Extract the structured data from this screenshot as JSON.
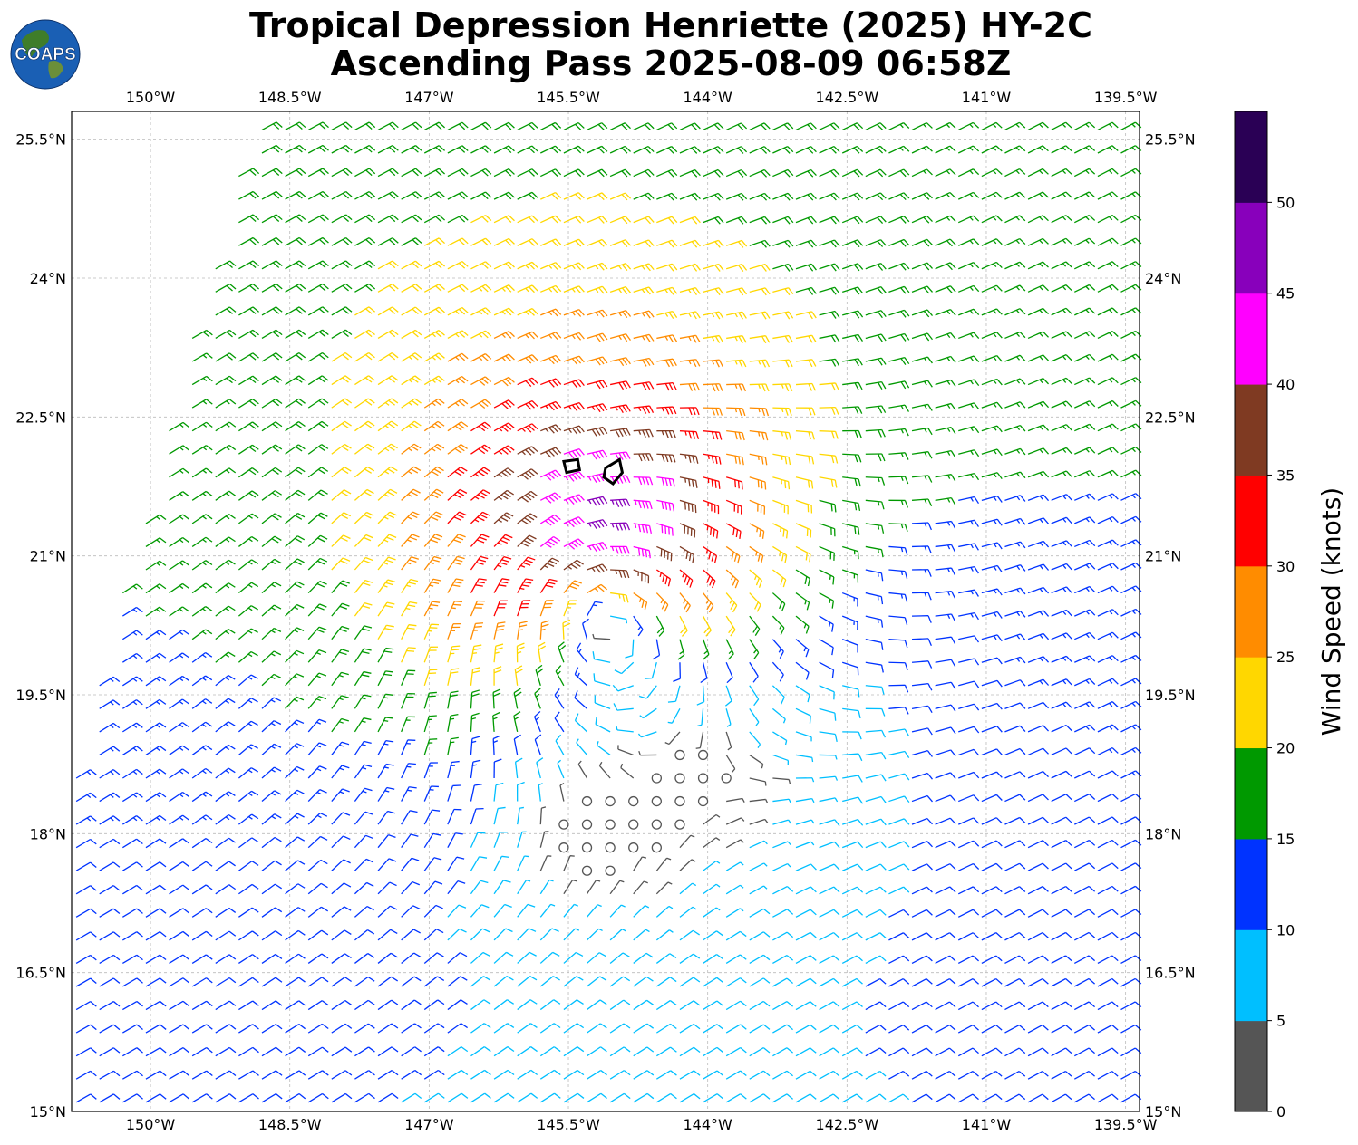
{
  "title": {
    "line1": "Tropical Depression Henriette (2025) HY-2C",
    "line2": "Ascending Pass 2025-08-09 06:58Z"
  },
  "logo": {
    "text": "COAPS",
    "icon": "globe-logo"
  },
  "map": {
    "lon_range": [
      -150.85,
      -139.35
    ],
    "lat_range": [
      15.0,
      25.8
    ],
    "lon_ticks": [
      "150°W",
      "148.5°W",
      "147°W",
      "145.5°W",
      "144°W",
      "142.5°W",
      "141°W",
      "139.5°W"
    ],
    "lon_values": [
      -150.0,
      -148.5,
      -147.0,
      -145.5,
      -144.0,
      -142.5,
      -141.0,
      -139.5
    ],
    "lat_ticks": [
      "15°N",
      "16.5°N",
      "18°N",
      "19.5°N",
      "21°N",
      "22.5°N",
      "24°N",
      "25.5°N"
    ],
    "lat_values": [
      15.0,
      16.5,
      18.0,
      19.5,
      21.0,
      22.5,
      24.0,
      25.5
    ],
    "grid": true,
    "storm_center": {
      "lon": -145.2,
      "lat": 20.45
    },
    "calm_center": {
      "lon": -145.2,
      "lat": 18.0
    },
    "swath_west_edge": [
      [
        -150.85,
        18.6
      ],
      [
        -148.9,
        25.8
      ]
    ]
  },
  "colorbar": {
    "label": "Wind Speed (knots)",
    "ticks": [
      "0",
      "5",
      "10",
      "15",
      "20",
      "25",
      "30",
      "35",
      "40",
      "45",
      "50"
    ],
    "bins": [
      {
        "min": 0,
        "max": 5,
        "color": "#555555"
      },
      {
        "min": 5,
        "max": 10,
        "color": "#00bfff"
      },
      {
        "min": 10,
        "max": 15,
        "color": "#0033ff"
      },
      {
        "min": 15,
        "max": 20,
        "color": "#009900"
      },
      {
        "min": 20,
        "max": 25,
        "color": "#ffd700"
      },
      {
        "min": 25,
        "max": 30,
        "color": "#ff8c00"
      },
      {
        "min": 30,
        "max": 35,
        "color": "#ff0000"
      },
      {
        "min": 35,
        "max": 40,
        "color": "#7f3a22"
      },
      {
        "min": 40,
        "max": 45,
        "color": "#ff00ff"
      },
      {
        "min": 45,
        "max": 50,
        "color": "#8800bb"
      },
      {
        "min": 50,
        "max": 55,
        "color": "#2a0055"
      }
    ]
  }
}
